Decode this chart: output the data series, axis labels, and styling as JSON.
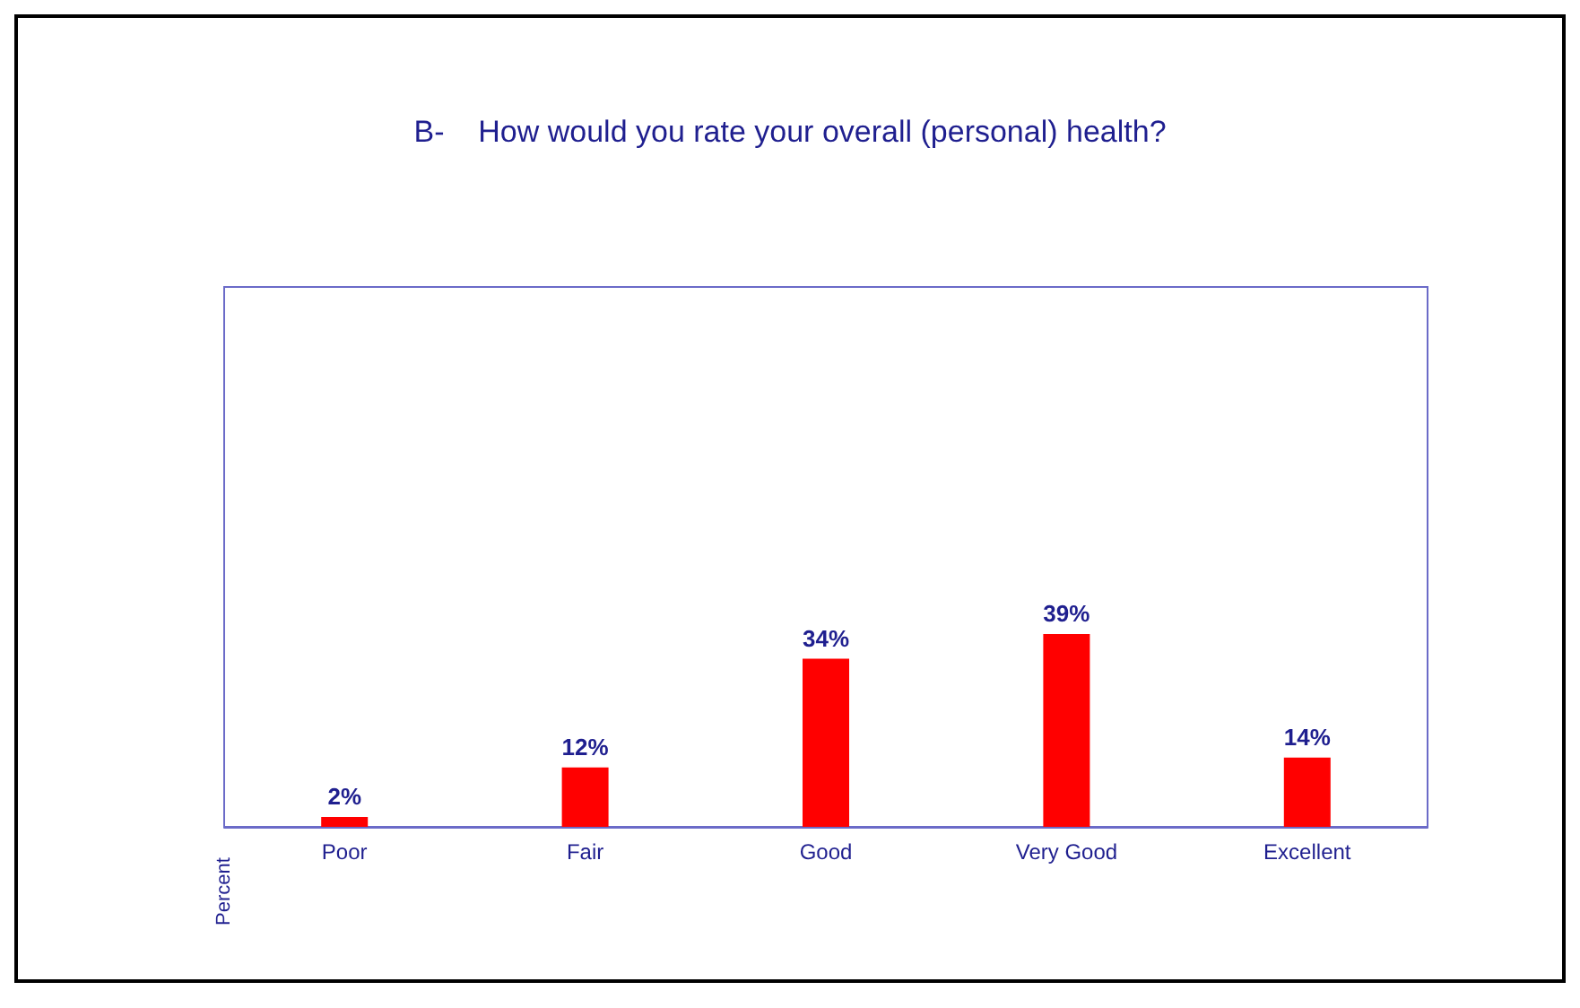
{
  "chart_data": {
    "type": "bar",
    "title": "B-    How would you rate your overall (personal) health?",
    "ylabel": "Percent",
    "categories": [
      "Poor",
      "Fair",
      "Good",
      "Very Good",
      "Excellent"
    ],
    "values": [
      2,
      12,
      34,
      39,
      14
    ],
    "color": "#ff0000",
    "value_labels": [
      "2%",
      "12%",
      "34%",
      "39%",
      "14%"
    ],
    "grid": false
  }
}
